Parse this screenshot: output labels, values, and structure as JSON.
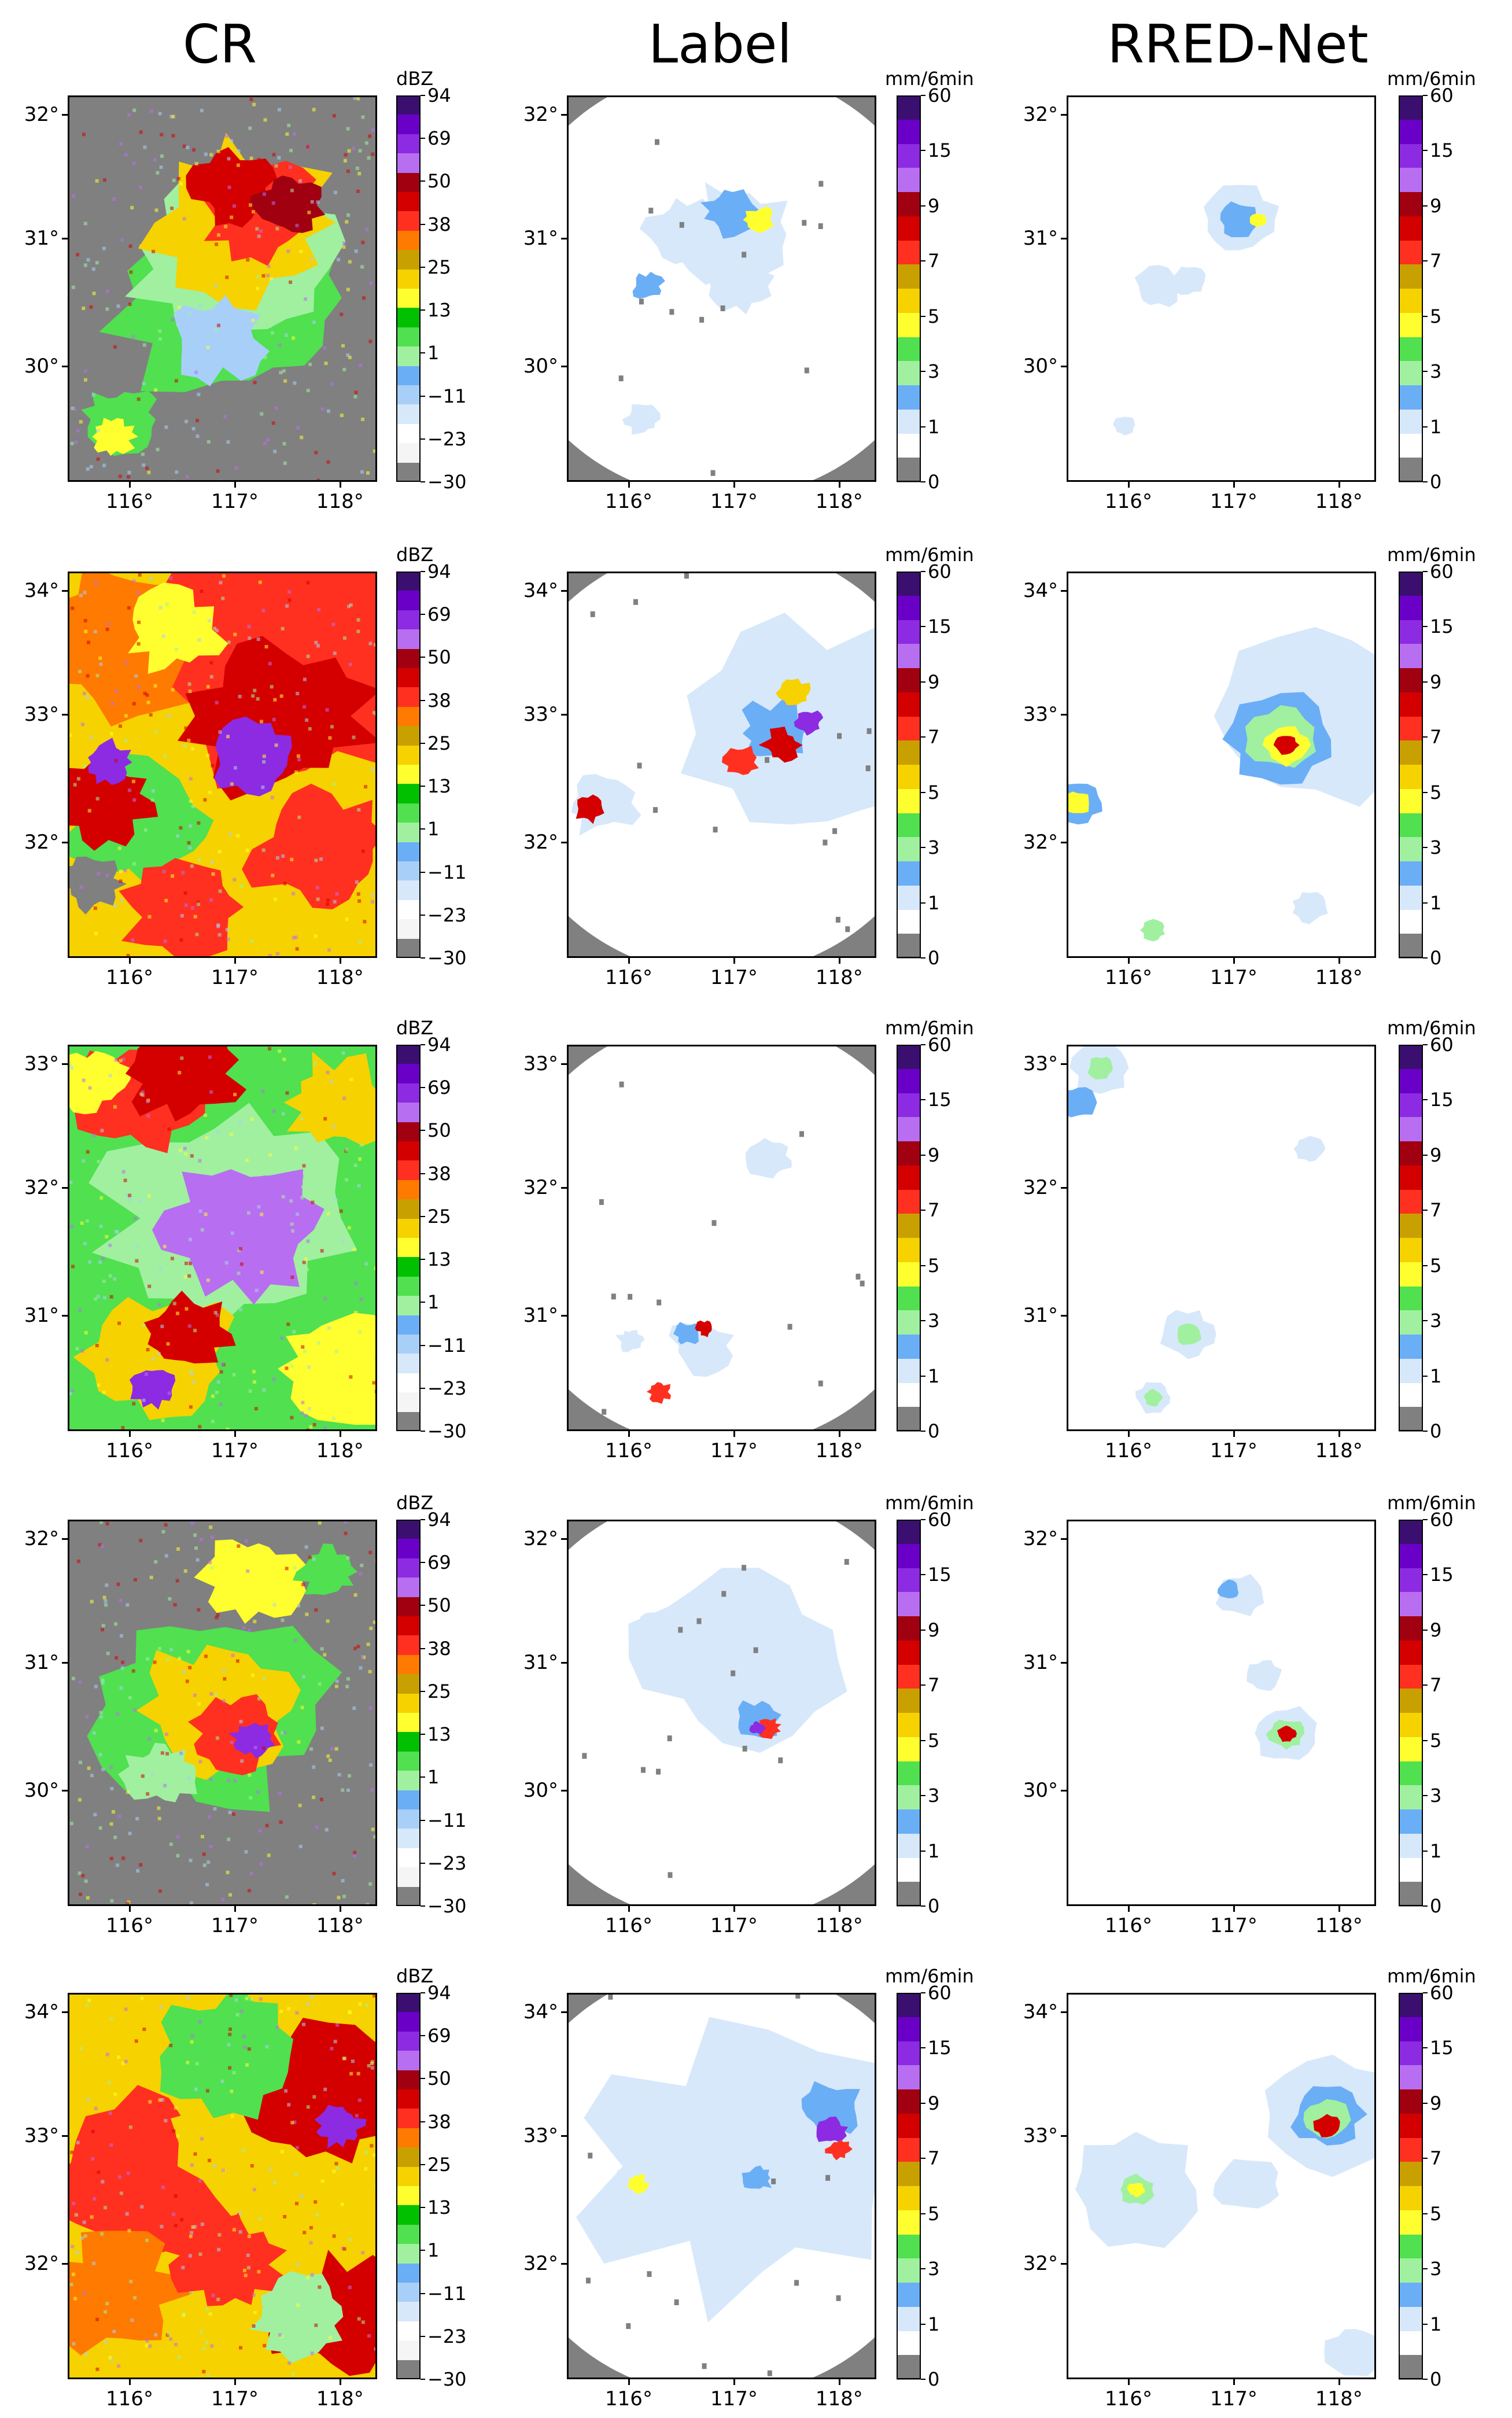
{
  "columns": [
    {
      "title": "CR",
      "type": "CR"
    },
    {
      "title": "Label",
      "type": "Label"
    },
    {
      "title": "RRED-Net",
      "type": "RRED"
    }
  ],
  "colorbars": {
    "CR": {
      "unit": "dBZ",
      "labels": [
        "94",
        "69",
        "50",
        "38",
        "25",
        "13",
        "1",
        "−11",
        "−23",
        "−30"
      ],
      "colors": [
        "#3b0f70",
        "#6a00c8",
        "#8c2be2",
        "#b86ef0",
        "#a00010",
        "#d40000",
        "#ff3020",
        "#ff7a00",
        "#c8a000",
        "#f6d200",
        "#ffff30",
        "#00c000",
        "#50e050",
        "#a0f0a0",
        "#6aaef6",
        "#a8cff8",
        "#d7e8fb",
        "#ffffff",
        "#f5f5f5",
        "#808080"
      ]
    },
    "RAIN": {
      "unit": "mm/6min",
      "labels": [
        "60",
        "15",
        "9",
        "7",
        "5",
        "3",
        "1",
        "0"
      ],
      "colors": [
        "#3b0f70",
        "#6a00c8",
        "#8c2be2",
        "#b86ef0",
        "#a00010",
        "#d40000",
        "#ff3020",
        "#c8a000",
        "#f6d200",
        "#ffff30",
        "#50e050",
        "#a0f0a0",
        "#6aaef6",
        "#d7e8fb",
        "#ffffff",
        "#808080"
      ]
    }
  },
  "rows": [
    {
      "lat": [
        "32°",
        "31°",
        "30°"
      ],
      "lon": [
        "116°",
        "117°",
        "118°"
      ]
    },
    {
      "lat": [
        "34°",
        "33°",
        "32°"
      ],
      "lon": [
        "116°",
        "117°",
        "118°"
      ]
    },
    {
      "lat": [
        "33°",
        "32°",
        "31°"
      ],
      "lon": [
        "116°",
        "117°",
        "118°"
      ]
    },
    {
      "lat": [
        "32°",
        "31°",
        "30°"
      ],
      "lon": [
        "116°",
        "117°",
        "118°"
      ]
    },
    {
      "lat": [
        "34°",
        "33°",
        "32°"
      ],
      "lon": [
        "116°",
        "117°",
        "118°"
      ]
    }
  ],
  "chart_data": {
    "type": "heatmap",
    "description_rows": 5,
    "panels_per_row": [
      "CR",
      "Label",
      "RRED-Net"
    ],
    "cr_colorbar_ticks_dBZ": [
      94,
      69,
      50,
      38,
      25,
      13,
      1,
      -11,
      -23,
      -30
    ],
    "rain_colorbar_ticks_mm_per_6min": [
      60,
      15,
      9,
      7,
      5,
      3,
      1,
      0
    ],
    "axes": [
      {
        "row": 1,
        "lat_ticks": [
          32,
          31,
          30
        ],
        "lon_ticks": [
          116,
          117,
          118
        ]
      },
      {
        "row": 2,
        "lat_ticks": [
          34,
          33,
          32
        ],
        "lon_ticks": [
          116,
          117,
          118
        ]
      },
      {
        "row": 3,
        "lat_ticks": [
          33,
          32,
          31
        ],
        "lon_ticks": [
          116,
          117,
          118
        ]
      },
      {
        "row": 4,
        "lat_ticks": [
          32,
          31,
          30
        ],
        "lon_ticks": [
          116,
          117,
          118
        ]
      },
      {
        "row": 5,
        "lat_ticks": [
          34,
          33,
          32
        ],
        "lon_ticks": [
          116,
          117,
          118
        ]
      }
    ]
  }
}
